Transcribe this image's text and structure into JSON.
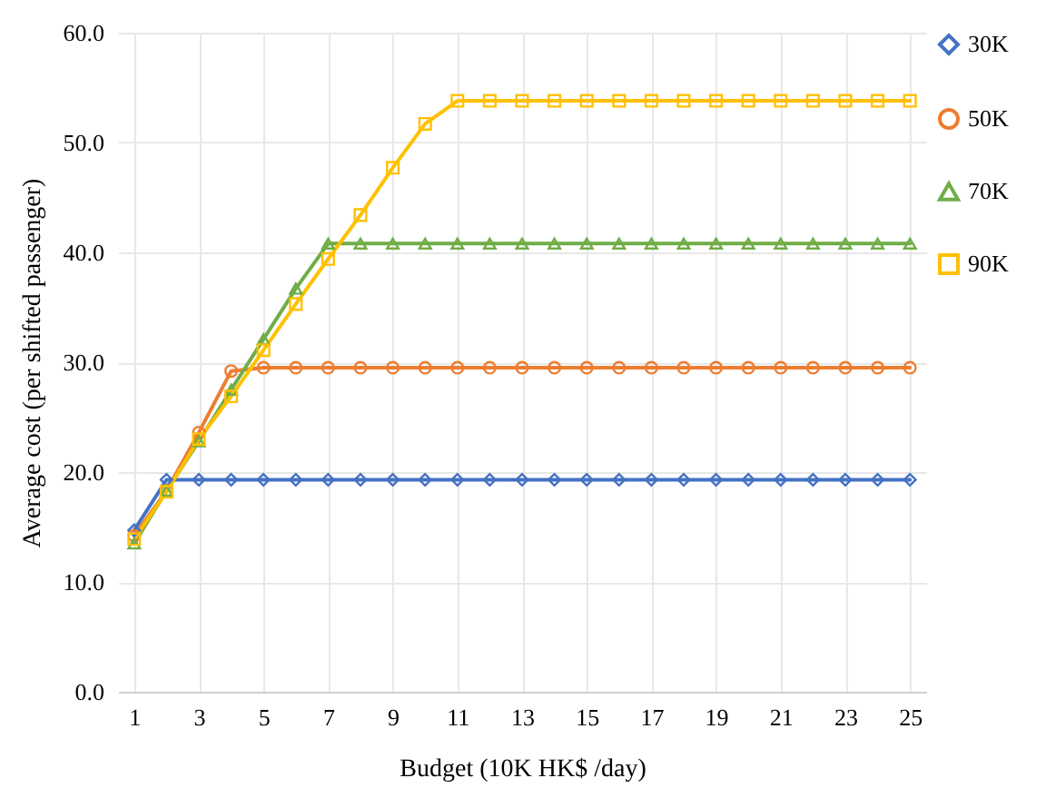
{
  "chart_data": {
    "type": "line",
    "xlabel": "Budget (10K HK$ /day)",
    "ylabel": "Average cost (per shifted passenger)",
    "x": [
      1,
      2,
      3,
      4,
      5,
      6,
      7,
      8,
      9,
      10,
      11,
      12,
      13,
      14,
      15,
      16,
      17,
      18,
      19,
      20,
      21,
      22,
      23,
      24,
      25
    ],
    "xlim": [
      0.5,
      25.5
    ],
    "xticks": [
      1,
      3,
      5,
      7,
      9,
      11,
      13,
      15,
      17,
      19,
      21,
      23,
      25
    ],
    "ylim": [
      0,
      60
    ],
    "yticks": [
      {
        "value": 0,
        "label": "0.0"
      },
      {
        "value": 10,
        "label": "10.0"
      },
      {
        "value": 20,
        "label": "20.0"
      },
      {
        "value": 30,
        "label": "30.0"
      },
      {
        "value": 40,
        "label": "40.0"
      },
      {
        "value": 50,
        "label": "50.0"
      },
      {
        "value": 60,
        "label": "60.0"
      }
    ],
    "grid": true,
    "legend": "right",
    "series": [
      {
        "name": "30K",
        "color": "#4472c4",
        "marker": "diamond",
        "values": [
          14.7,
          19.3,
          19.3,
          19.3,
          19.3,
          19.3,
          19.3,
          19.3,
          19.3,
          19.3,
          19.3,
          19.3,
          19.3,
          19.3,
          19.3,
          19.3,
          19.3,
          19.3,
          19.3,
          19.3,
          19.3,
          19.3,
          19.3,
          19.3,
          19.3
        ]
      },
      {
        "name": "50K",
        "color": "#ed7d31",
        "marker": "circle",
        "values": [
          14.2,
          18.3,
          23.6,
          29.2,
          29.5,
          29.5,
          29.5,
          29.5,
          29.5,
          29.5,
          29.5,
          29.5,
          29.5,
          29.5,
          29.5,
          29.5,
          29.5,
          29.5,
          29.5,
          29.5,
          29.5,
          29.5,
          29.5,
          29.5,
          29.5
        ]
      },
      {
        "name": "70K",
        "color": "#70ad47",
        "marker": "triangle",
        "values": [
          13.5,
          18.3,
          22.8,
          27.5,
          32.1,
          36.7,
          40.8,
          40.8,
          40.8,
          40.8,
          40.8,
          40.8,
          40.8,
          40.8,
          40.8,
          40.8,
          40.8,
          40.8,
          40.8,
          40.8,
          40.8,
          40.8,
          40.8,
          40.8,
          40.8
        ]
      },
      {
        "name": "90K",
        "color": "#ffc000",
        "marker": "square",
        "values": [
          13.9,
          18.2,
          23.0,
          26.9,
          31.1,
          35.3,
          39.4,
          43.4,
          47.7,
          51.7,
          53.8,
          53.8,
          53.8,
          53.8,
          53.8,
          53.8,
          53.8,
          53.8,
          53.8,
          53.8,
          53.8,
          53.8,
          53.8,
          53.8,
          53.8
        ]
      }
    ]
  }
}
